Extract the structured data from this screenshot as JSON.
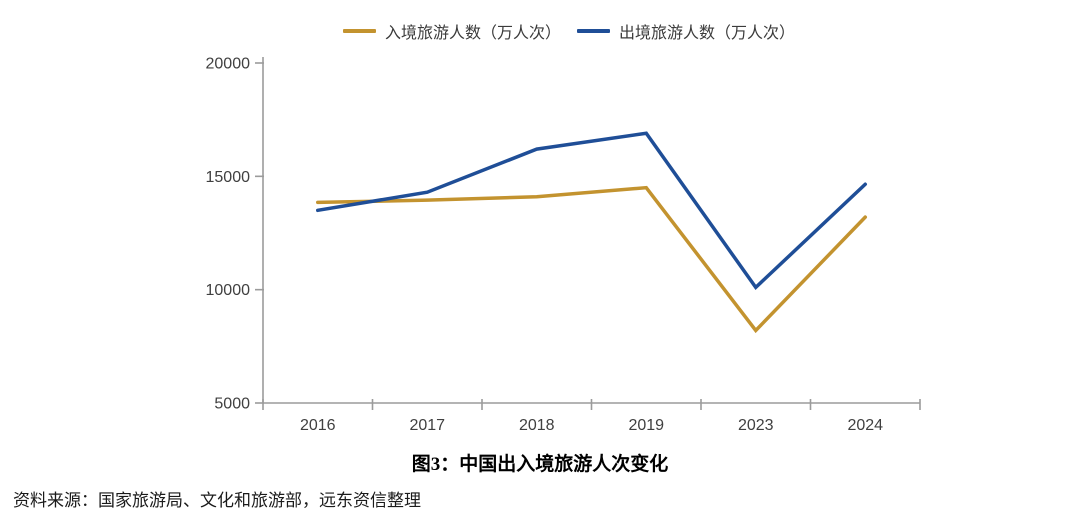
{
  "legend": {
    "items": [
      {
        "label": "入境旅游人数（万人次）",
        "color": "#C3932F"
      },
      {
        "label": "出境旅游人数（万人次）",
        "color": "#1F4E97"
      }
    ]
  },
  "title": "图3：中国出入境旅游人次变化",
  "source": "资料来源：国家旅游局、文化和旅游部，远东资信整理",
  "axes": {
    "line_color": "#9B9B9B",
    "tick_label_color": "#404040"
  },
  "chart_data": {
    "type": "line",
    "title": "图3：中国出入境旅游人次变化",
    "categories": [
      "2016",
      "2017",
      "2018",
      "2019",
      "2023",
      "2024"
    ],
    "series": [
      {
        "name": "入境旅游人数（万人次）",
        "color": "#C3932F",
        "values": [
          13850,
          13950,
          14100,
          14500,
          8200,
          13200
        ]
      },
      {
        "name": "出境旅游人数（万人次）",
        "color": "#1F4E97",
        "values": [
          13500,
          14300,
          16200,
          16900,
          10100,
          14650
        ]
      }
    ],
    "xlabel": "",
    "ylabel": "",
    "ylim": [
      5000,
      20000
    ],
    "yticks": [
      5000,
      10000,
      15000,
      20000
    ],
    "grid": false,
    "legend_position": "top"
  }
}
